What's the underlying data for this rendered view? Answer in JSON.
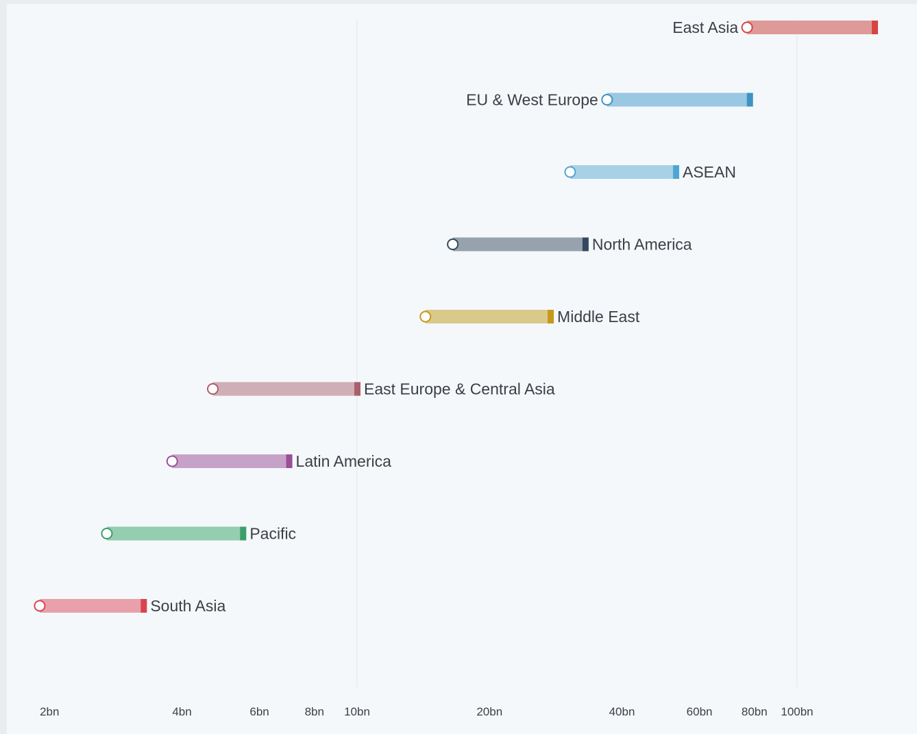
{
  "chart_data": {
    "type": "range-bar",
    "x_scale": "log",
    "x_unit": "bn",
    "xlim": [
      1.85,
      165
    ],
    "x_ticks": [
      {
        "value": 2,
        "label": "2bn"
      },
      {
        "value": 4,
        "label": "4bn"
      },
      {
        "value": 6,
        "label": "6bn"
      },
      {
        "value": 8,
        "label": "8bn"
      },
      {
        "value": 10,
        "label": "10bn"
      },
      {
        "value": 20,
        "label": "20bn"
      },
      {
        "value": 40,
        "label": "40bn"
      },
      {
        "value": 60,
        "label": "60bn"
      },
      {
        "value": 80,
        "label": "80bn"
      },
      {
        "value": 100,
        "label": "100bn"
      }
    ],
    "gridlines_at": [
      10,
      100
    ],
    "series": [
      {
        "name": "East Asia",
        "start": 77,
        "end": 150,
        "color": "#de9a98",
        "end_color": "#d64541",
        "label_side": "left"
      },
      {
        "name": "EU & West Europe",
        "start": 37,
        "end": 78,
        "color": "#9ac7e2",
        "end_color": "#3f93c4",
        "label_side": "left"
      },
      {
        "name": "ASEAN",
        "start": 30.5,
        "end": 53,
        "color": "#a8d1e6",
        "end_color": "#4fa6d3",
        "label_side": "right"
      },
      {
        "name": "North America",
        "start": 16.5,
        "end": 33,
        "color": "#97a2ae",
        "end_color": "#34495e",
        "label_side": "right"
      },
      {
        "name": "Middle East",
        "start": 14.3,
        "end": 27.5,
        "color": "#d9c98b",
        "end_color": "#c49a18",
        "label_side": "right"
      },
      {
        "name": "East Europe & Central Asia",
        "start": 4.7,
        "end": 10,
        "color": "#cfafb5",
        "end_color": "#a9606b",
        "label_side": "right"
      },
      {
        "name": "Latin America",
        "start": 3.8,
        "end": 7,
        "color": "#c7a2c8",
        "end_color": "#9b4f98",
        "label_side": "right"
      },
      {
        "name": "Pacific",
        "start": 2.7,
        "end": 5.5,
        "color": "#94cdb0",
        "end_color": "#3e9e69",
        "label_side": "right"
      },
      {
        "name": "South Asia",
        "start": 1.9,
        "end": 3.27,
        "color": "#e8a1aa",
        "end_color": "#d94452",
        "label_side": "right"
      }
    ]
  }
}
